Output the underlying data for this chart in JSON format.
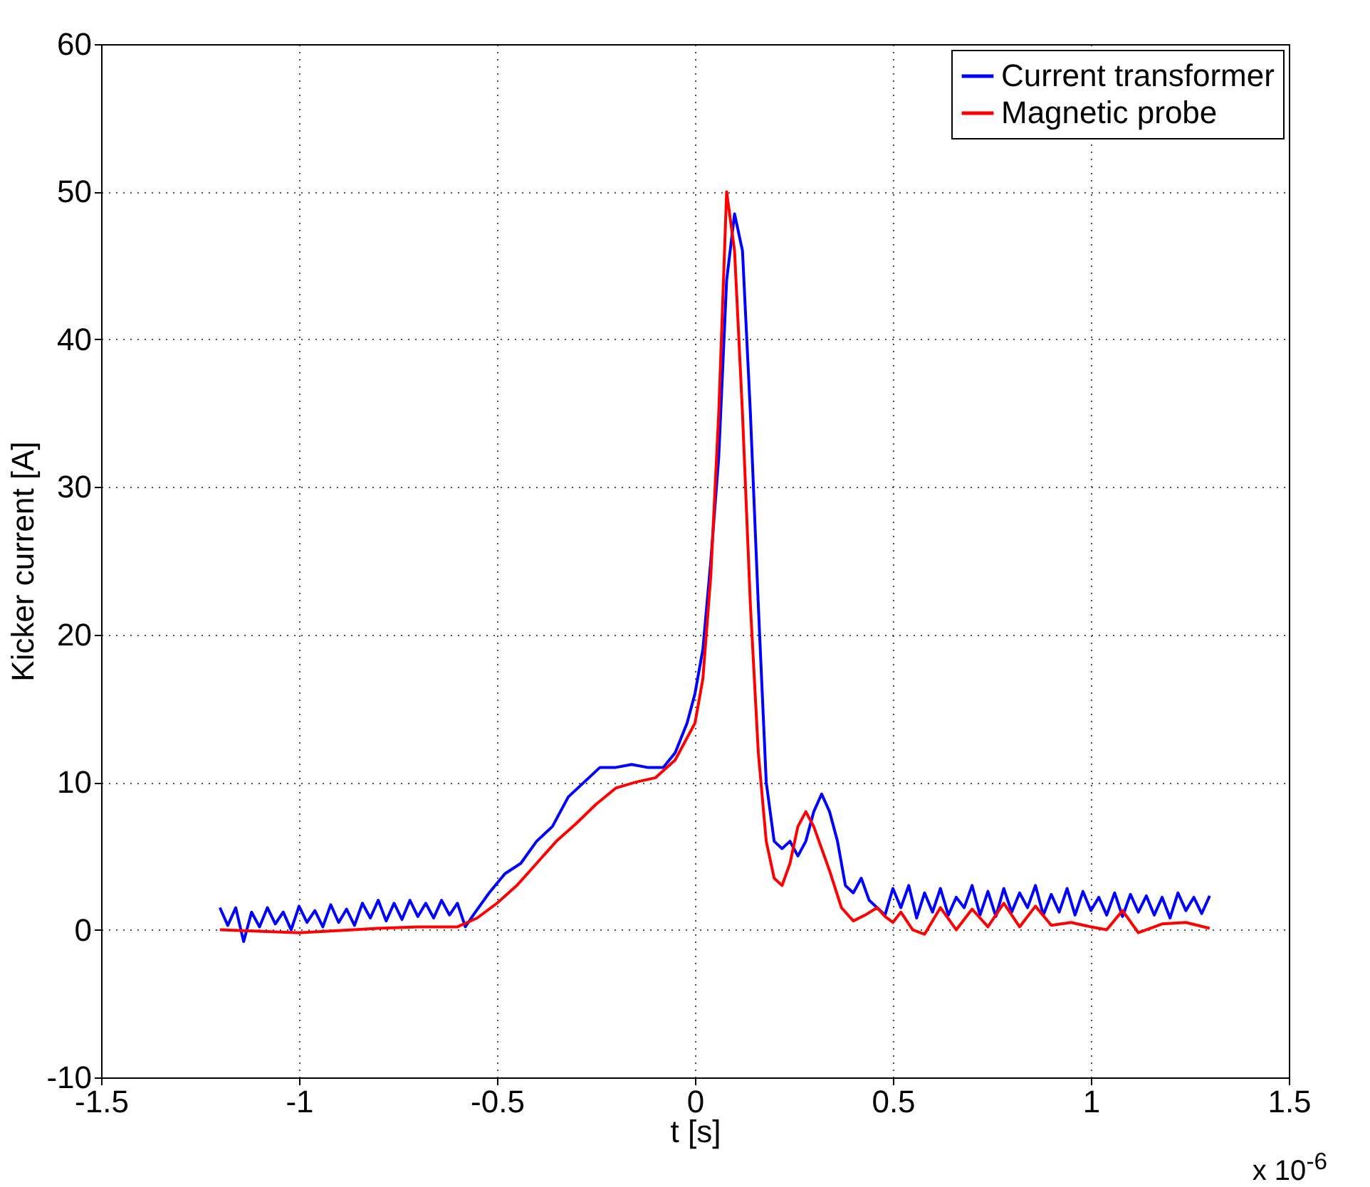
{
  "chart_data": {
    "type": "line",
    "xlabel": "t [s]",
    "ylabel": "Kicker current [A]",
    "annotations": [
      "x 10$^{-6}$"
    ],
    "xlim": [
      -1.5,
      1.5
    ],
    "xticks": [
      -1.5,
      -1,
      -0.5,
      0,
      0.5,
      1,
      1.5
    ],
    "ylim": [
      -10,
      60
    ],
    "yticks": [
      -10,
      0,
      10,
      20,
      30,
      40,
      50,
      60
    ],
    "grid": true,
    "legend": "top right",
    "line_style": "solid",
    "series": [
      {
        "name": "Current transformer",
        "color": "#0000ff",
        "x": [
          -1.2,
          -1.18,
          -1.16,
          -1.14,
          -1.12,
          -1.1,
          -1.08,
          -1.06,
          -1.04,
          -1.02,
          -1.0,
          -0.98,
          -0.96,
          -0.94,
          -0.92,
          -0.9,
          -0.88,
          -0.86,
          -0.84,
          -0.82,
          -0.8,
          -0.78,
          -0.76,
          -0.74,
          -0.72,
          -0.7,
          -0.68,
          -0.66,
          -0.64,
          -0.62,
          -0.6,
          -0.58,
          -0.56,
          -0.52,
          -0.48,
          -0.44,
          -0.4,
          -0.36,
          -0.32,
          -0.28,
          -0.24,
          -0.2,
          -0.16,
          -0.12,
          -0.08,
          -0.05,
          -0.02,
          0,
          0.02,
          0.04,
          0.06,
          0.08,
          0.1,
          0.12,
          0.14,
          0.16,
          0.18,
          0.2,
          0.22,
          0.24,
          0.26,
          0.28,
          0.3,
          0.32,
          0.34,
          0.36,
          0.38,
          0.4,
          0.42,
          0.44,
          0.46,
          0.48,
          0.5,
          0.52,
          0.54,
          0.56,
          0.58,
          0.6,
          0.62,
          0.64,
          0.66,
          0.68,
          0.7,
          0.72,
          0.74,
          0.76,
          0.78,
          0.8,
          0.82,
          0.84,
          0.86,
          0.88,
          0.9,
          0.92,
          0.94,
          0.96,
          0.98,
          1.0,
          1.02,
          1.04,
          1.06,
          1.08,
          1.1,
          1.12,
          1.14,
          1.16,
          1.18,
          1.2,
          1.22,
          1.24,
          1.26,
          1.28,
          1.3
        ],
        "values": [
          1.5,
          0.3,
          1.5,
          -0.8,
          1.2,
          0.2,
          1.5,
          0.4,
          1.2,
          0,
          1.6,
          0.5,
          1.3,
          0.2,
          1.7,
          0.5,
          1.4,
          0.3,
          1.8,
          0.8,
          2,
          0.6,
          1.8,
          0.7,
          2,
          0.9,
          1.8,
          0.8,
          2,
          1,
          1.8,
          0.2,
          1,
          2.5,
          3.8,
          4.5,
          6,
          7,
          9,
          10,
          11,
          11,
          11.2,
          11,
          11,
          12,
          14,
          16,
          19,
          25,
          32,
          44,
          48.5,
          46,
          35,
          22,
          10,
          6,
          5.5,
          6,
          5,
          6,
          8,
          9.2,
          8,
          6,
          3,
          2.5,
          3.5,
          2,
          1.5,
          1,
          2.8,
          1.5,
          3,
          0.8,
          2.5,
          1.2,
          2.8,
          1,
          2.2,
          1.5,
          3,
          1,
          2.6,
          0.9,
          2.8,
          1.2,
          2.5,
          1.5,
          3,
          1,
          2.4,
          1.2,
          2.8,
          1,
          2.6,
          1.3,
          2.2,
          1,
          2.5,
          0.9,
          2.4,
          1.2,
          2.3,
          1,
          2.2,
          0.8,
          2.5,
          1.3,
          2.2,
          1.1,
          2.3
        ]
      },
      {
        "name": "Magnetic probe",
        "color": "#ff0000",
        "x": [
          -1.2,
          -1.0,
          -0.8,
          -0.7,
          -0.6,
          -0.55,
          -0.5,
          -0.45,
          -0.4,
          -0.35,
          -0.3,
          -0.25,
          -0.2,
          -0.15,
          -0.1,
          -0.05,
          0,
          0.02,
          0.04,
          0.06,
          0.08,
          0.1,
          0.12,
          0.14,
          0.16,
          0.18,
          0.2,
          0.22,
          0.24,
          0.26,
          0.28,
          0.3,
          0.32,
          0.34,
          0.37,
          0.4,
          0.43,
          0.46,
          0.48,
          0.5,
          0.52,
          0.55,
          0.58,
          0.62,
          0.66,
          0.7,
          0.74,
          0.78,
          0.82,
          0.86,
          0.9,
          0.95,
          1.0,
          1.04,
          1.08,
          1.12,
          1.18,
          1.24,
          1.3
        ],
        "values": [
          0,
          -0.2,
          0.1,
          0.2,
          0.2,
          0.8,
          1.8,
          3,
          4.5,
          6,
          7.2,
          8.5,
          9.6,
          10,
          10.3,
          11.5,
          14,
          17,
          24,
          35,
          50,
          46,
          35,
          22,
          12,
          6,
          3.5,
          3,
          4.5,
          7,
          8,
          7,
          5.5,
          4,
          1.5,
          0.6,
          1,
          1.5,
          0.9,
          0.5,
          1.2,
          0,
          -0.3,
          1.5,
          0,
          1.4,
          0.2,
          1.8,
          0.2,
          1.6,
          0.3,
          0.5,
          0.2,
          0,
          1.3,
          -0.2,
          0.4,
          0.5,
          0.1
        ]
      }
    ]
  }
}
